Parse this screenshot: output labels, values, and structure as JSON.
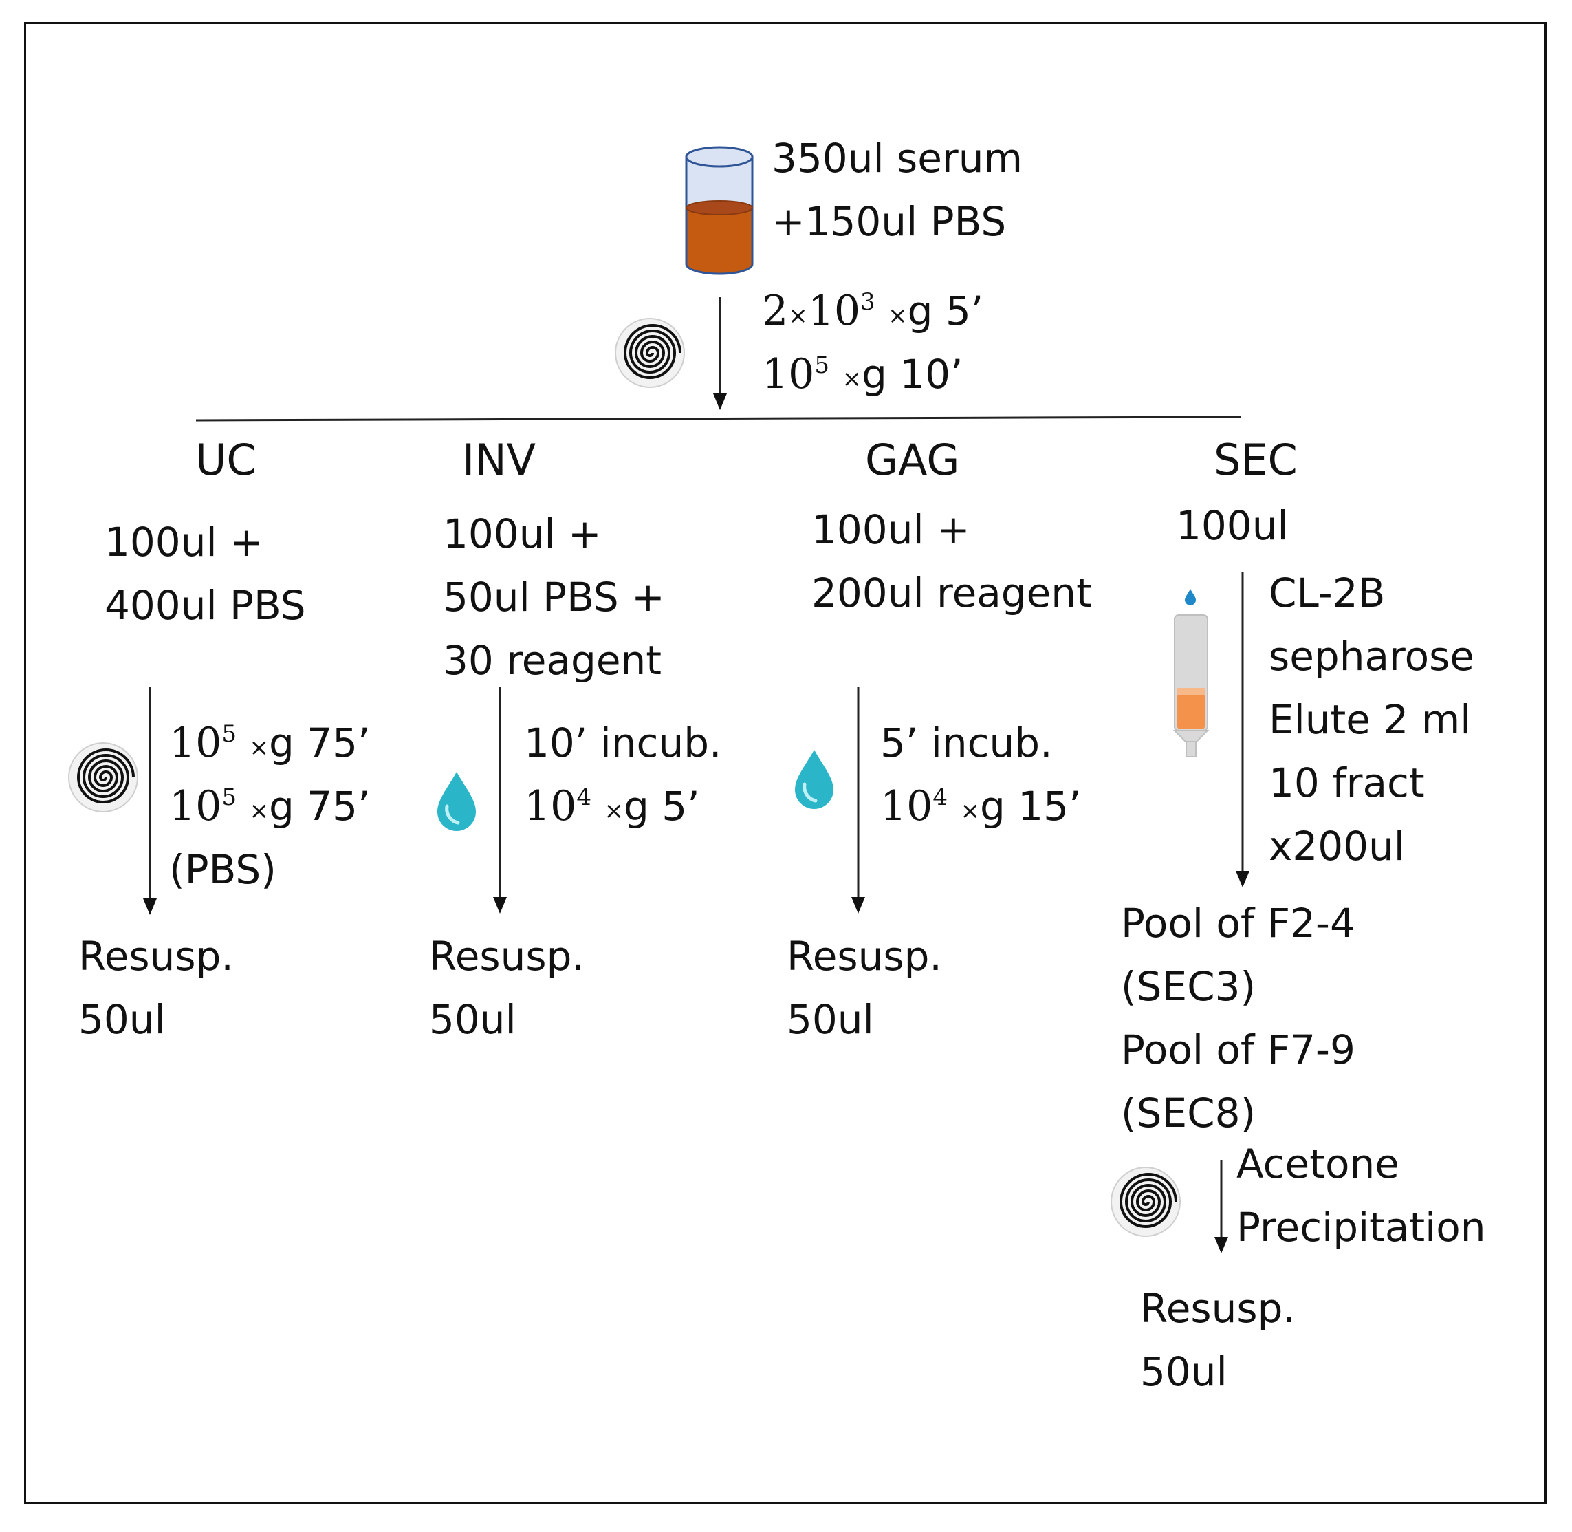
{
  "start": {
    "lines": [
      "350ul serum",
      "+150ul PBS"
    ]
  },
  "initial_spin": {
    "lines": [
      {
        "num": "2",
        "x": "×",
        "base": "10",
        "exp": "3",
        "x2": "×",
        "rest": "g 5’"
      },
      {
        "num": "",
        "x": "",
        "base": "10",
        "exp": "5",
        "x2": "×",
        "rest": "g 10’"
      }
    ]
  },
  "methods": {
    "uc": {
      "header": "UC",
      "sample": [
        "100ul +",
        "400ul PBS"
      ],
      "steps": [
        {
          "base": "10",
          "exp": "5",
          "x2": "×",
          "rest": "g 75’"
        },
        {
          "base": "10",
          "exp": "5",
          "x2": "×",
          "rest": "g 75’"
        }
      ],
      "step_note": "(PBS)",
      "result": [
        "Resusp.",
        "50ul"
      ]
    },
    "inv": {
      "header": "INV",
      "sample": [
        "100ul +",
        "50ul PBS +",
        "30 reagent"
      ],
      "incub": "10’ incub.",
      "steps": [
        {
          "base": "10",
          "exp": "4",
          "x2": "×",
          "rest": "g 5’"
        }
      ],
      "result": [
        "Resusp.",
        "50ul"
      ]
    },
    "gag": {
      "header": "GAG",
      "sample": [
        "100ul +",
        "200ul reagent"
      ],
      "incub": "5’ incub.",
      "steps": [
        {
          "base": "10",
          "exp": "4",
          "x2": "×",
          "rest": "g 15’"
        }
      ],
      "result": [
        "Resusp.",
        "50ul"
      ]
    },
    "sec": {
      "header": "SEC",
      "sample": [
        "100ul"
      ],
      "column_text": [
        "CL-2B",
        "sepharose",
        "Elute 2 ml",
        "10 fract",
        "x200ul"
      ],
      "pools": [
        "Pool of F2-4",
        "(SEC3)",
        "Pool of F7-9",
        "(SEC8)"
      ],
      "precip": [
        "Acetone",
        "Precipitation"
      ],
      "result": [
        "Resusp.",
        "50ul"
      ]
    }
  },
  "icons": [
    "tube-icon",
    "centrifuge-spiral-icon",
    "droplet-icon",
    "column-icon"
  ],
  "colors": {
    "tube_serum": "#c55a11",
    "tube_top": "#dae3f3",
    "drop": "#2bb5c9",
    "column_fluid": "#f4914a",
    "column_body": "#d9d9d9"
  }
}
